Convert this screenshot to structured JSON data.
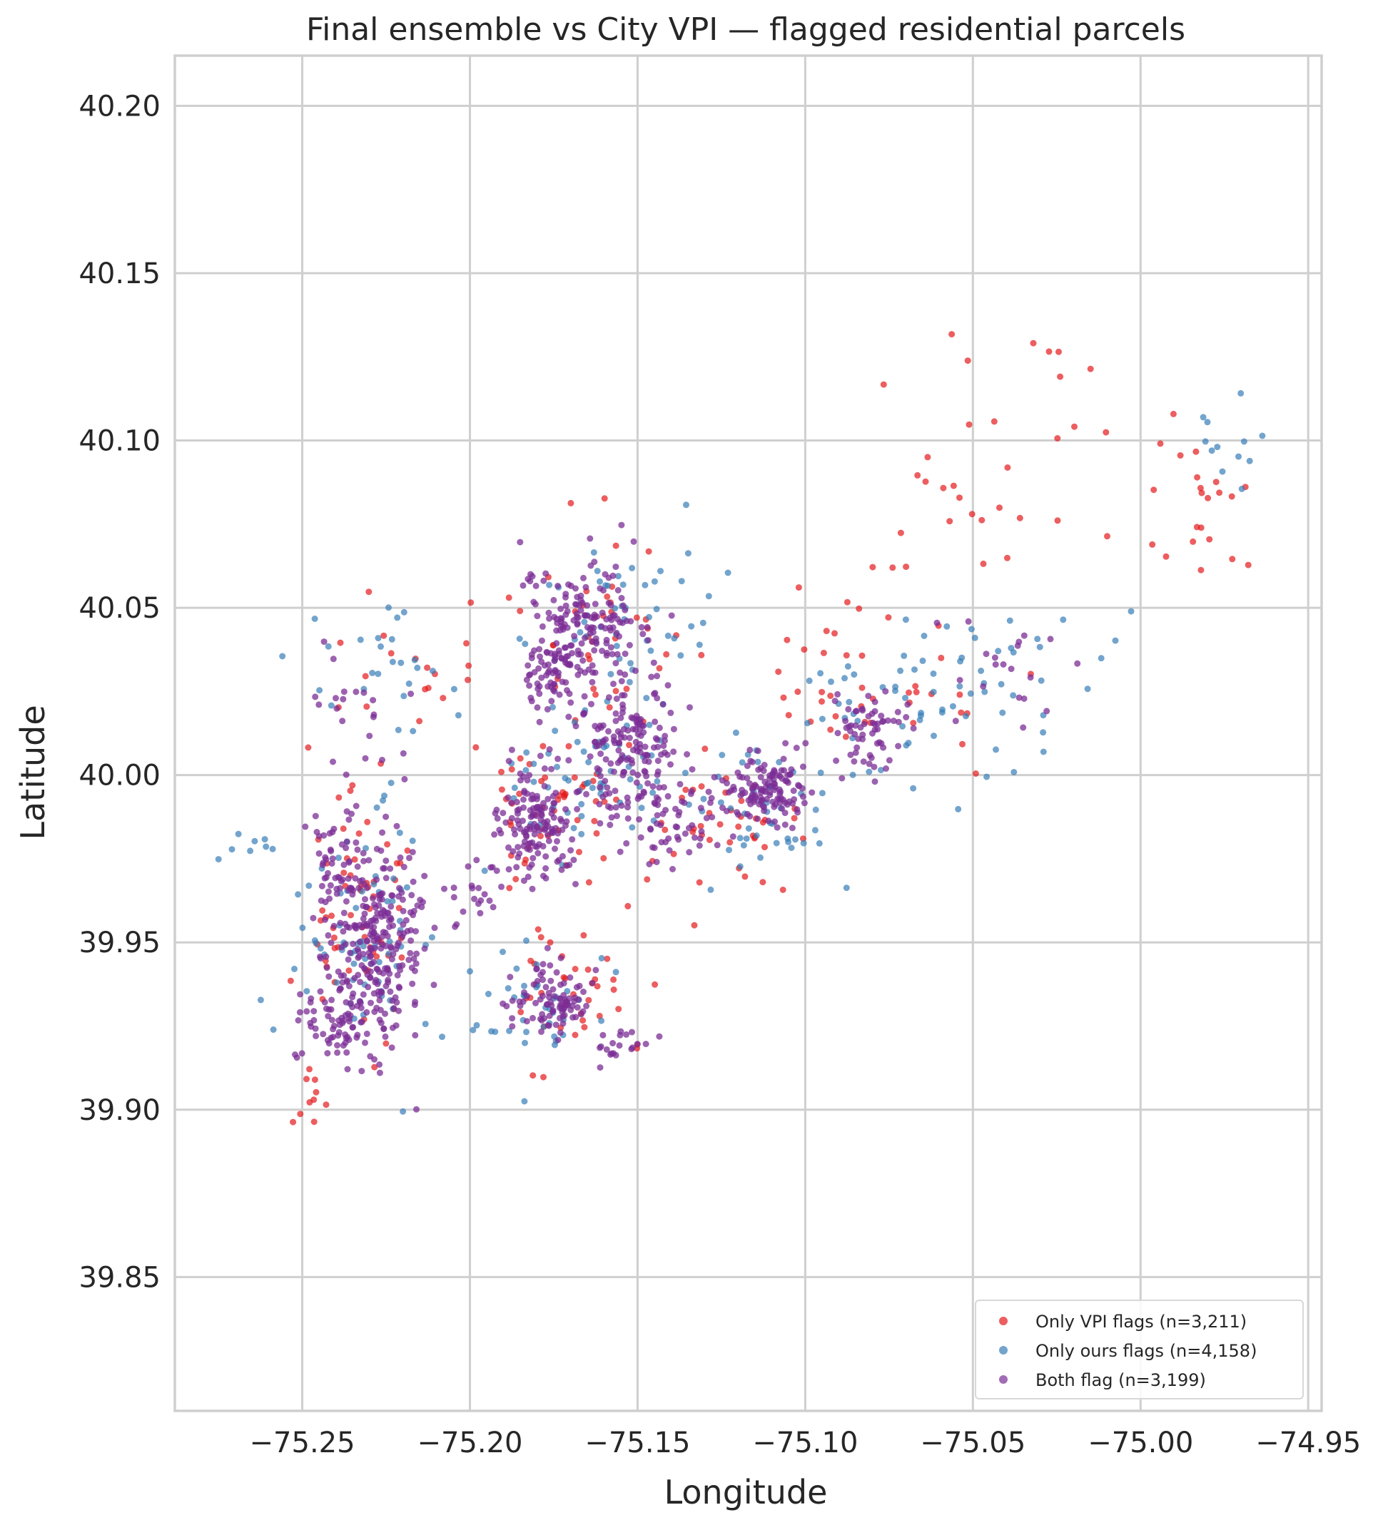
{
  "chart_data": {
    "type": "scatter",
    "title": "Final ensemble vs City VPI — flagged residential parcels",
    "xlabel": "Longitude",
    "ylabel": "Latitude",
    "xlim": [
      -75.288,
      -74.946
    ],
    "ylim": [
      39.81,
      40.215
    ],
    "xticks": [
      -75.25,
      -75.2,
      -75.15,
      -75.1,
      -75.05,
      -75.0,
      -74.95
    ],
    "xtick_labels": [
      "−75.25",
      "−75.20",
      "−75.15",
      "−75.10",
      "−75.05",
      "−75.00",
      "−74.95"
    ],
    "yticks": [
      39.85,
      39.9,
      39.95,
      40.0,
      40.05,
      40.1,
      40.15,
      40.2
    ],
    "ytick_labels": [
      "39.85",
      "39.90",
      "39.95",
      "40.00",
      "40.05",
      "40.10",
      "40.15",
      "40.20"
    ],
    "grid": true,
    "legend_position": "lower-right",
    "series": [
      {
        "name": "Only VPI flags  (n=3,211)",
        "color": "#e41a1c",
        "clusters": [
          {
            "lon": -75.235,
            "lat": 39.96,
            "sd_lon": 0.008,
            "sd_lat": 0.018,
            "n": 60
          },
          {
            "lon": -75.17,
            "lat": 39.935,
            "sd_lon": 0.01,
            "sd_lat": 0.01,
            "n": 40
          },
          {
            "lon": -75.175,
            "lat": 39.99,
            "sd_lon": 0.01,
            "sd_lat": 0.012,
            "n": 45
          },
          {
            "lon": -75.16,
            "lat": 40.04,
            "sd_lon": 0.015,
            "sd_lat": 0.02,
            "n": 45
          },
          {
            "lon": -75.125,
            "lat": 39.98,
            "sd_lon": 0.015,
            "sd_lat": 0.01,
            "n": 40
          },
          {
            "lon": -75.08,
            "lat": 40.03,
            "sd_lon": 0.02,
            "sd_lat": 0.015,
            "n": 45
          },
          {
            "lon": -75.04,
            "lat": 40.09,
            "sd_lon": 0.02,
            "sd_lat": 0.02,
            "n": 30
          },
          {
            "lon": -74.985,
            "lat": 40.08,
            "sd_lon": 0.01,
            "sd_lat": 0.012,
            "n": 22
          },
          {
            "lon": -75.21,
            "lat": 40.03,
            "sd_lon": 0.015,
            "sd_lat": 0.01,
            "n": 20
          },
          {
            "lon": -75.248,
            "lat": 39.905,
            "sd_lon": 0.004,
            "sd_lat": 0.008,
            "n": 10
          }
        ]
      },
      {
        "name": "Only ours flags  (n=4,158)",
        "color": "#377eb8",
        "clusters": [
          {
            "lon": -75.232,
            "lat": 39.955,
            "sd_lon": 0.009,
            "sd_lat": 0.02,
            "n": 70
          },
          {
            "lon": -75.18,
            "lat": 39.93,
            "sd_lon": 0.01,
            "sd_lat": 0.01,
            "n": 40
          },
          {
            "lon": -75.165,
            "lat": 40.0,
            "sd_lon": 0.012,
            "sd_lat": 0.012,
            "n": 55
          },
          {
            "lon": -75.155,
            "lat": 40.045,
            "sd_lon": 0.015,
            "sd_lat": 0.015,
            "n": 55
          },
          {
            "lon": -75.115,
            "lat": 39.99,
            "sd_lon": 0.012,
            "sd_lat": 0.01,
            "n": 45
          },
          {
            "lon": -75.075,
            "lat": 40.02,
            "sd_lon": 0.018,
            "sd_lat": 0.012,
            "n": 45
          },
          {
            "lon": -75.04,
            "lat": 40.03,
            "sd_lon": 0.015,
            "sd_lat": 0.01,
            "n": 30
          },
          {
            "lon": -74.975,
            "lat": 40.095,
            "sd_lon": 0.008,
            "sd_lat": 0.008,
            "n": 12
          },
          {
            "lon": -75.225,
            "lat": 40.03,
            "sd_lon": 0.015,
            "sd_lat": 0.01,
            "n": 25
          },
          {
            "lon": -75.265,
            "lat": 39.978,
            "sd_lon": 0.005,
            "sd_lat": 0.004,
            "n": 8
          }
        ]
      },
      {
        "name": "Both flag  (n=3,199)",
        "color": "#7b2d95",
        "clusters": [
          {
            "lon": -75.228,
            "lat": 39.95,
            "sd_lon": 0.007,
            "sd_lat": 0.015,
            "n": 260
          },
          {
            "lon": -75.24,
            "lat": 39.925,
            "sd_lon": 0.005,
            "sd_lat": 0.006,
            "n": 60
          },
          {
            "lon": -75.24,
            "lat": 39.975,
            "sd_lon": 0.004,
            "sd_lat": 0.008,
            "n": 50
          },
          {
            "lon": -75.177,
            "lat": 39.932,
            "sd_lon": 0.006,
            "sd_lat": 0.006,
            "n": 90
          },
          {
            "lon": -75.18,
            "lat": 39.985,
            "sd_lon": 0.006,
            "sd_lat": 0.009,
            "n": 150
          },
          {
            "lon": -75.152,
            "lat": 40.008,
            "sd_lon": 0.007,
            "sd_lat": 0.009,
            "n": 160
          },
          {
            "lon": -75.165,
            "lat": 40.045,
            "sd_lon": 0.01,
            "sd_lat": 0.01,
            "n": 160
          },
          {
            "lon": -75.175,
            "lat": 40.03,
            "sd_lon": 0.005,
            "sd_lat": 0.006,
            "n": 60
          },
          {
            "lon": -75.112,
            "lat": 39.995,
            "sd_lon": 0.006,
            "sd_lat": 0.005,
            "n": 130
          },
          {
            "lon": -75.08,
            "lat": 40.015,
            "sd_lon": 0.006,
            "sd_lat": 0.006,
            "n": 60
          },
          {
            "lon": -75.14,
            "lat": 39.985,
            "sd_lon": 0.008,
            "sd_lat": 0.006,
            "n": 50
          },
          {
            "lon": -75.235,
            "lat": 40.02,
            "sd_lon": 0.01,
            "sd_lat": 0.008,
            "n": 20
          },
          {
            "lon": -75.2,
            "lat": 39.965,
            "sd_lon": 0.005,
            "sd_lat": 0.004,
            "n": 20
          },
          {
            "lon": -75.155,
            "lat": 39.92,
            "sd_lon": 0.005,
            "sd_lat": 0.003,
            "n": 20
          },
          {
            "lon": -75.04,
            "lat": 40.03,
            "sd_lon": 0.01,
            "sd_lat": 0.008,
            "n": 20
          }
        ]
      }
    ]
  }
}
